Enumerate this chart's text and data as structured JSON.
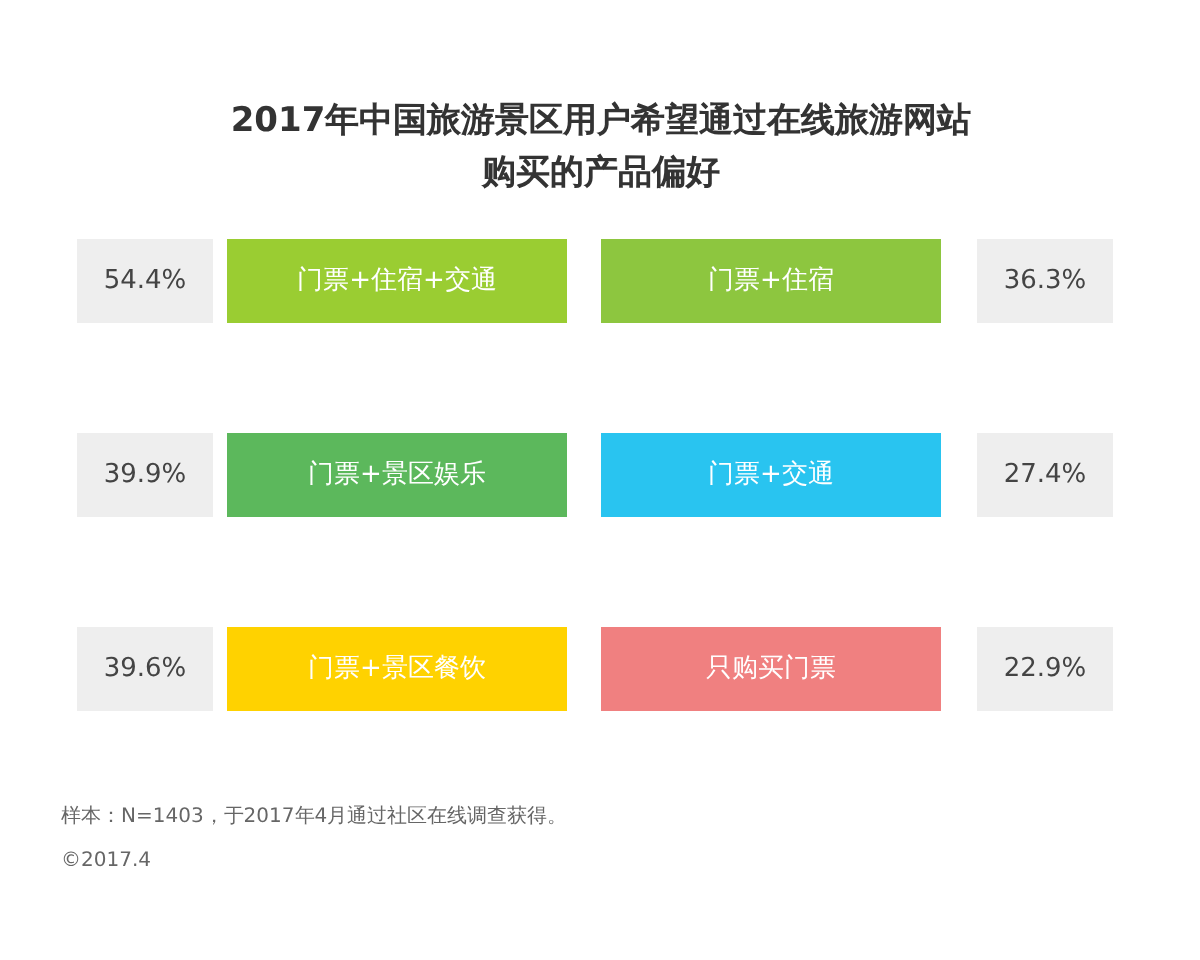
{
  "chart_data": {
    "type": "other",
    "title": "2017年中国旅游景区用户希望通过在线旅游网站购买的产品偏好",
    "categories": [
      "门票+住宿+交通",
      "门票+住宿",
      "门票+景区娱乐",
      "门票+交通",
      "门票+景区餐饮",
      "只购买门票"
    ],
    "values": [
      54.4,
      36.3,
      39.9,
      27.4,
      39.6,
      22.9
    ],
    "value_labels": [
      "54.4%",
      "36.3%",
      "39.9%",
      "27.4%",
      "39.6%",
      "22.9%"
    ],
    "colors": [
      "#9acd32",
      "#8dc63f",
      "#5cb85c",
      "#29c4f0",
      "#ffd200",
      "#f08080"
    ],
    "annotations": [
      "样本：N=1403，于2017年4月通过社区在线调查获得。",
      "©2017.4"
    ]
  }
}
